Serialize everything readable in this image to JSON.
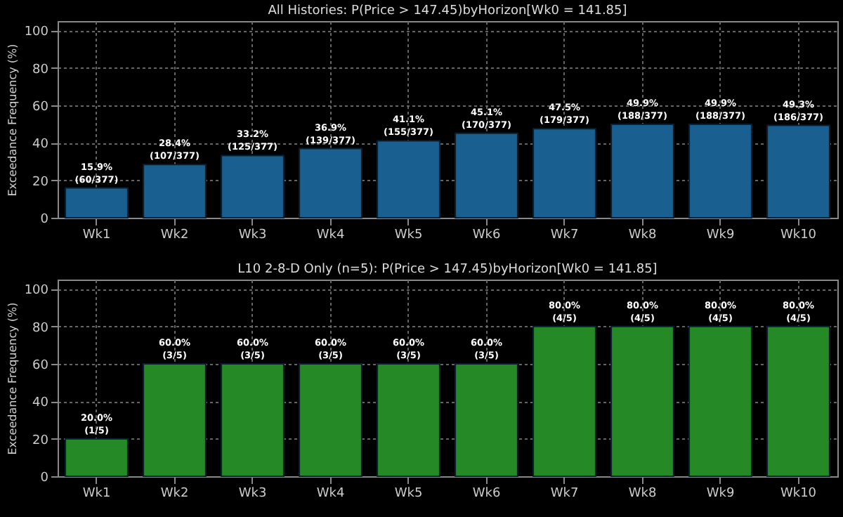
{
  "chart_data": [
    {
      "type": "bar",
      "title": "All Histories: P(Price > 147.45)byHorizon[Wk0 = 141.85]",
      "ylabel": "Exceedance Frequency (%)",
      "categories": [
        "Wk1",
        "Wk2",
        "Wk3",
        "Wk4",
        "Wk5",
        "Wk6",
        "Wk7",
        "Wk8",
        "Wk9",
        "Wk10"
      ],
      "values": [
        15.9,
        28.4,
        33.2,
        36.9,
        41.1,
        45.1,
        47.5,
        49.9,
        49.9,
        49.3
      ],
      "value_labels": [
        "15.9%\n(60/377)",
        "28.4%\n(107/377)",
        "33.2%\n(125/377)",
        "36.9%\n(139/377)",
        "41.1%\n(155/377)",
        "45.1%\n(170/377)",
        "47.5%\n(179/377)",
        "49.9%\n(188/377)",
        "49.9%\n(188/377)",
        "49.3%\n(186/377)"
      ],
      "color": "#195f90",
      "ylim": [
        0,
        105
      ],
      "yticks": [
        0,
        20,
        40,
        60,
        80,
        100
      ],
      "grid": true
    },
    {
      "type": "bar",
      "title": "L10 2-8-D Only (n=5): P(Price > 147.45)byHorizon[Wk0 = 141.85]",
      "ylabel": "Exceedance Frequency (%)",
      "categories": [
        "Wk1",
        "Wk2",
        "Wk3",
        "Wk4",
        "Wk5",
        "Wk6",
        "Wk7",
        "Wk8",
        "Wk9",
        "Wk10"
      ],
      "values": [
        20,
        60,
        60,
        60,
        60,
        60,
        80,
        80,
        80,
        80
      ],
      "value_labels": [
        "20.0%\n(1/5)",
        "60.0%\n(3/5)",
        "60.0%\n(3/5)",
        "60.0%\n(3/5)",
        "60.0%\n(3/5)",
        "60.0%\n(3/5)",
        "80.0%\n(4/5)",
        "80.0%\n(4/5)",
        "80.0%\n(4/5)",
        "80.0%\n(4/5)"
      ],
      "color": "#258a25",
      "ylim": [
        0,
        105
      ],
      "yticks": [
        0,
        20,
        40,
        60,
        80,
        100
      ],
      "grid": true
    }
  ]
}
